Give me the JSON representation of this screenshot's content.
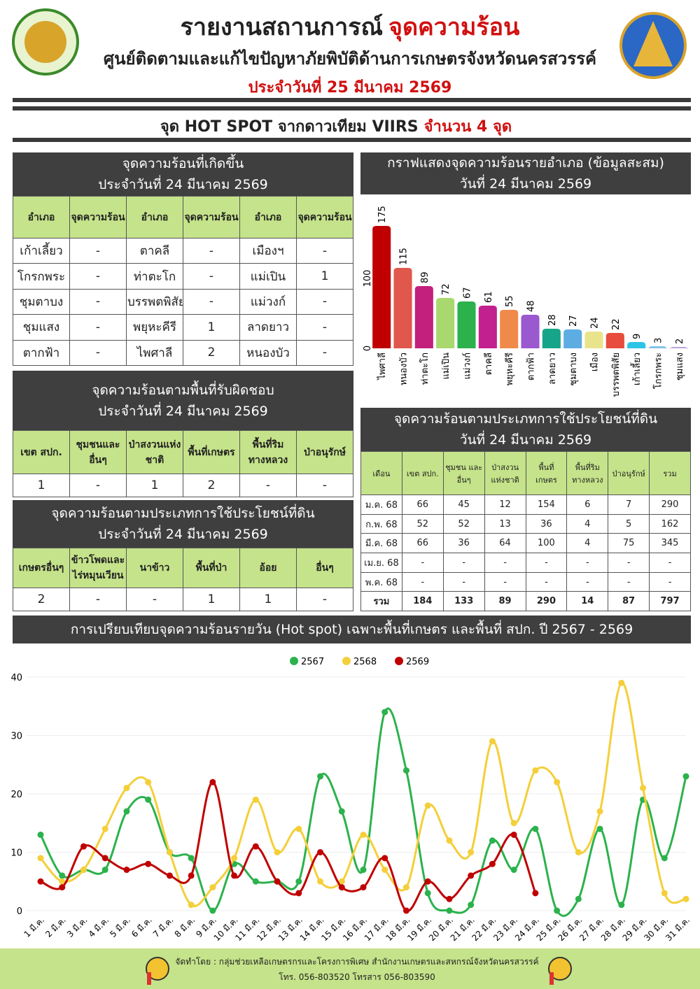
{
  "header": {
    "title": "รายงานสถานการณ์",
    "title_highlight": "จุดความร้อน",
    "subtitle": "ศูนย์ติดตามและแก้ไขปัญหาภัยพิบัติด้านการเกษตรจังหวัดนครสวรรค์",
    "date": "ประจำวันที่ 25 มีนาคม 2569"
  },
  "banner": {
    "text": "จุด HOT SPOT จากดาวเทียม VIIRS",
    "highlight": "จำนวน 4 จุด"
  },
  "tables": [
    {
      "title": [
        "จุดความร้อนที่เกิดขึ้น",
        "ประจำวันที่ 24 มีนาคม 2569"
      ],
      "headers": [
        "อำเภอ",
        "จุดความร้อน",
        "อำเภอ",
        "จุดความร้อน",
        "อำเภอ",
        "จุดความร้อน"
      ],
      "rows": [
        [
          "เก้าเลี้ยว",
          "-",
          "ตาคลี",
          "-",
          "เมืองฯ",
          "-"
        ],
        [
          "โกรกพระ",
          "-",
          "ท่าตะโก",
          "-",
          "แม่เปิน",
          1
        ],
        [
          "ชุมตาบง",
          "-",
          "บรรพตพิสัย",
          "-",
          "แม่วงก์",
          "-"
        ],
        [
          "ชุมแสง",
          "-",
          "พยุหะคีรี",
          1,
          "ลาดยาว",
          "-"
        ],
        [
          "ตากฟ้า",
          "-",
          "ไพศาลี",
          2,
          "หนองบัว",
          "-"
        ]
      ]
    },
    {
      "title": [
        "จุดความร้อนตามพื้นที่รับผิดชอบ",
        "ประจำวันที่ 24 มีนาคม 2569"
      ],
      "headers": [
        "เขต สปก.",
        "ชุมชนและอื่นๆ",
        "ป่าสงวนแห่งชาติ",
        "พื้นที่เกษตร",
        "พื้นที่ริมทางหลวง",
        "ป่าอนุรักษ์"
      ],
      "rows": [
        [
          1,
          "-",
          1,
          2,
          "-",
          "-"
        ]
      ]
    },
    {
      "title": [
        "จุดความร้อนตามประเภทการใช้ประโยชน์ที่ดิน",
        "ประจำวันที่ 24 มีนาคม 2569"
      ],
      "headers": [
        "เกษตรอื่นๆ",
        "ข้าวโพดและไร่หมุนเวียน",
        "นาข้าว",
        "พื้นที่ป่า",
        "อ้อย",
        "อื่นๆ"
      ],
      "rows": [
        [
          2,
          "-",
          "-",
          1,
          1,
          "-"
        ]
      ]
    },
    {
      "title": [
        "จุดความร้อนตามประเภทการใช้ประโยชน์ที่ดิน",
        "วันที่ 24 มีนาคม  2569"
      ],
      "headers": [
        "เดือน",
        "เขต สปก.",
        "ชุมชน และ อื่นๆ",
        "ป่าสงวน แห่งชาติ",
        "พื้นที่ เกษตร",
        "พื้นที่ริม ทางหลวง",
        "ป่าอนุรักษ์",
        "รวม"
      ],
      "rows": [
        [
          "ม.ค. 68",
          66,
          45,
          12,
          154,
          6,
          7,
          290
        ],
        [
          "ก.พ. 68",
          52,
          52,
          13,
          36,
          4,
          5,
          162
        ],
        [
          "มี.ค. 68",
          66,
          36,
          64,
          100,
          4,
          75,
          345
        ],
        [
          "เม.ย. 68",
          "-",
          "-",
          "-",
          "-",
          "-",
          "-",
          "-"
        ],
        [
          "พ.ค. 68",
          "-",
          "-",
          "-",
          "-",
          "-",
          "-",
          "-"
        ],
        [
          "รวม",
          184,
          133,
          89,
          290,
          14,
          87,
          797
        ]
      ]
    }
  ],
  "chart_data": [
    {
      "type": "bar",
      "title": "กราฟแสดงจุดความร้อนรายอำเภอ (ข้อมูลสะสม)",
      "subtitle": "วันที่ 24 มีนาคม 2569",
      "categories": [
        "ไพศาลี",
        "หนองบัว",
        "ท่าตะโก",
        "แม่เปิน",
        "แม่วงก์",
        "ตาคลี",
        "พยุหะคีรี",
        "ตากฟ้า",
        "ลาดยาว",
        "ชุมตาบง",
        "เมือง",
        "บรรพตพิสัย",
        "เก้าเลี้ยว",
        "โกรกพระ",
        "ชุมแสง"
      ],
      "values": [
        175,
        115,
        89,
        72,
        67,
        61,
        55,
        48,
        28,
        27,
        24,
        22,
        9,
        3,
        2
      ],
      "colors": [
        "#c00000",
        "#e0584c",
        "#c2207c",
        "#a9d86e",
        "#2bb24c",
        "#c3208f",
        "#f08a4b",
        "#9b59d0",
        "#17a589",
        "#5dade2",
        "#e9e48c",
        "#e74c3c",
        "#2ec4e6",
        "#85c1e9",
        "#b7a6d8"
      ],
      "ylim": [
        0,
        180
      ],
      "yticks": [
        0,
        100
      ]
    },
    {
      "type": "line",
      "title": "การเปรียบเทียบจุดความร้อนรายวัน (Hot spot)  เฉพาะพื้นที่เกษตร และพื้นที่ สปก. ปี 2567 - 2569",
      "categories": [
        "1 มี.ค.",
        "2 มี.ค.",
        "3 มี.ค.",
        "4 มี.ค.",
        "5 มี.ค.",
        "6 มี.ค.",
        "7 มี.ค.",
        "8 มี.ค.",
        "9 มี.ค.",
        "10 มี.ค.",
        "11 มี.ค.",
        "12 มี.ค.",
        "13 มี.ค.",
        "14 มี.ค.",
        "15 มี.ค.",
        "16 มี.ค.",
        "17 มี.ค.",
        "18 มี.ค.",
        "19 มี.ค.",
        "20 มี.ค.",
        "21 มี.ค.",
        "22 มี.ค.",
        "23 มี.ค.",
        "24 มี.ค.",
        "25 มี.ค.",
        "26 มี.ค.",
        "27 มี.ค.",
        "28 มี.ค.",
        "29 มี.ค.",
        "30 มี.ค.",
        "31 มี.ค."
      ],
      "series": [
        {
          "name": "2567",
          "color": "#2bb24c",
          "values": [
            13,
            6,
            7,
            7,
            17,
            19,
            10,
            9,
            0,
            8,
            5,
            5,
            5,
            23,
            17,
            7,
            34,
            24,
            3,
            0,
            1,
            12,
            7,
            14,
            0,
            2,
            14,
            1,
            19,
            9,
            23
          ]
        },
        {
          "name": "2568",
          "color": "#f4cf3a",
          "values": [
            9,
            5,
            7,
            14,
            21,
            22,
            10,
            1,
            4,
            9,
            19,
            10,
            14,
            5,
            5,
            13,
            7,
            4,
            18,
            12,
            10,
            29,
            15,
            24,
            22,
            10,
            17,
            39,
            21,
            3,
            2
          ]
        },
        {
          "name": "2569",
          "color": "#c00000",
          "values": [
            5,
            4,
            11,
            9,
            7,
            8,
            6,
            6,
            22,
            6,
            11,
            5,
            3,
            10,
            4,
            4,
            9,
            0,
            5,
            2,
            6,
            8,
            13,
            3,
            null,
            null,
            null,
            null,
            null,
            null,
            null
          ]
        }
      ],
      "ylim": [
        0,
        40
      ],
      "yticks": [
        0,
        10,
        20,
        30,
        40
      ]
    }
  ],
  "footer": {
    "line1": "จัดทำโดย : กลุ่มช่วยเหลือเกษตรกรและโครงการพิเศษ สำนักงานเกษตรและสหกรณ์จังหวัดนครสวรรค์",
    "line2": "โทร. 056-803520 โทรสาร 056-803590"
  }
}
